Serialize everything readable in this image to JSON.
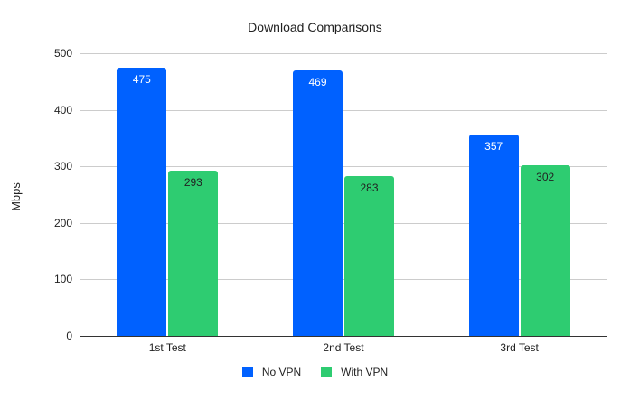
{
  "chart_data": {
    "type": "bar",
    "title": "Download Comparisons",
    "xlabel": "",
    "ylabel": "Mbps",
    "ylim": [
      0,
      500
    ],
    "yticks": [
      0,
      100,
      200,
      300,
      400,
      500
    ],
    "categories": [
      "1st Test",
      "2nd Test",
      "3rd Test"
    ],
    "series": [
      {
        "name": "No VPN",
        "color": "#0061ff",
        "label_color": "#ffffff",
        "values": [
          475,
          469,
          357
        ]
      },
      {
        "name": "With VPN",
        "color": "#2ecc71",
        "label_color": "#222222",
        "values": [
          293,
          283,
          302
        ]
      }
    ],
    "grid": true,
    "legend_position": "bottom"
  }
}
